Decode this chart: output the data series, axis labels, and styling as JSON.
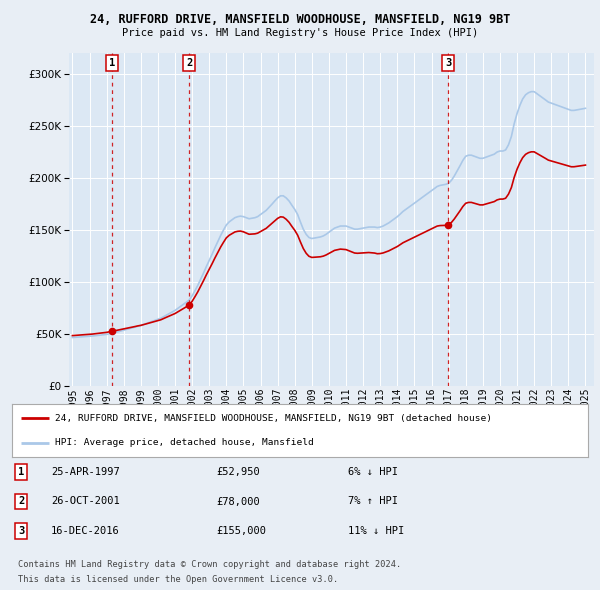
{
  "title": "24, RUFFORD DRIVE, MANSFIELD WOODHOUSE, MANSFIELD, NG19 9BT",
  "subtitle": "Price paid vs. HM Land Registry's House Price Index (HPI)",
  "xlim_start": 1994.8,
  "xlim_end": 2025.5,
  "ylim": [
    0,
    320000
  ],
  "yticks": [
    0,
    50000,
    100000,
    150000,
    200000,
    250000,
    300000
  ],
  "ytick_labels": [
    "£0",
    "£50K",
    "£100K",
    "£150K",
    "£200K",
    "£250K",
    "£300K"
  ],
  "xticks": [
    1995,
    1996,
    1997,
    1998,
    1999,
    2000,
    2001,
    2002,
    2003,
    2004,
    2005,
    2006,
    2007,
    2008,
    2009,
    2010,
    2011,
    2012,
    2013,
    2014,
    2015,
    2016,
    2017,
    2018,
    2019,
    2020,
    2021,
    2022,
    2023,
    2024,
    2025
  ],
  "transaction_dates": [
    1997.32,
    2001.82,
    2016.96
  ],
  "transaction_prices": [
    52950,
    78000,
    155000
  ],
  "transaction_labels": [
    "1",
    "2",
    "3"
  ],
  "legend_line1": "24, RUFFORD DRIVE, MANSFIELD WOODHOUSE, MANSFIELD, NG19 9BT (detached house)",
  "legend_line2": "HPI: Average price, detached house, Mansfield",
  "table_rows": [
    [
      "1",
      "25-APR-1997",
      "£52,950",
      "6% ↓ HPI"
    ],
    [
      "2",
      "26-OCT-2001",
      "£78,000",
      "7% ↑ HPI"
    ],
    [
      "3",
      "16-DEC-2016",
      "£155,000",
      "11% ↓ HPI"
    ]
  ],
  "footnote1": "Contains HM Land Registry data © Crown copyright and database right 2024.",
  "footnote2": "This data is licensed under the Open Government Licence v3.0.",
  "hpi_color": "#aac8e8",
  "price_color": "#cc0000",
  "background_color": "#e8eef5",
  "plot_bg_color": "#dce8f4",
  "grid_color": "#ffffff",
  "transaction_box_color": "#cc0000",
  "hpi_years": [
    1995.0,
    1995.17,
    1995.33,
    1995.5,
    1995.67,
    1995.83,
    1996.0,
    1996.17,
    1996.33,
    1996.5,
    1996.67,
    1996.83,
    1997.0,
    1997.17,
    1997.33,
    1997.5,
    1997.67,
    1997.83,
    1998.0,
    1998.17,
    1998.33,
    1998.5,
    1998.67,
    1998.83,
    1999.0,
    1999.17,
    1999.33,
    1999.5,
    1999.67,
    1999.83,
    2000.0,
    2000.17,
    2000.33,
    2000.5,
    2000.67,
    2000.83,
    2001.0,
    2001.17,
    2001.33,
    2001.5,
    2001.67,
    2001.83,
    2002.0,
    2002.17,
    2002.33,
    2002.5,
    2002.67,
    2002.83,
    2003.0,
    2003.17,
    2003.33,
    2003.5,
    2003.67,
    2003.83,
    2004.0,
    2004.17,
    2004.33,
    2004.5,
    2004.67,
    2004.83,
    2005.0,
    2005.17,
    2005.33,
    2005.5,
    2005.67,
    2005.83,
    2006.0,
    2006.17,
    2006.33,
    2006.5,
    2006.67,
    2006.83,
    2007.0,
    2007.17,
    2007.33,
    2007.5,
    2007.67,
    2007.83,
    2008.0,
    2008.17,
    2008.33,
    2008.5,
    2008.67,
    2008.83,
    2009.0,
    2009.17,
    2009.33,
    2009.5,
    2009.67,
    2009.83,
    2010.0,
    2010.17,
    2010.33,
    2010.5,
    2010.67,
    2010.83,
    2011.0,
    2011.17,
    2011.33,
    2011.5,
    2011.67,
    2011.83,
    2012.0,
    2012.17,
    2012.33,
    2012.5,
    2012.67,
    2012.83,
    2013.0,
    2013.17,
    2013.33,
    2013.5,
    2013.67,
    2013.83,
    2014.0,
    2014.17,
    2014.33,
    2014.5,
    2014.67,
    2014.83,
    2015.0,
    2015.17,
    2015.33,
    2015.5,
    2015.67,
    2015.83,
    2016.0,
    2016.17,
    2016.33,
    2016.5,
    2016.67,
    2016.83,
    2017.0,
    2017.17,
    2017.33,
    2017.5,
    2017.67,
    2017.83,
    2018.0,
    2018.17,
    2018.33,
    2018.5,
    2018.67,
    2018.83,
    2019.0,
    2019.17,
    2019.33,
    2019.5,
    2019.67,
    2019.83,
    2020.0,
    2020.17,
    2020.33,
    2020.5,
    2020.67,
    2020.83,
    2021.0,
    2021.17,
    2021.33,
    2021.5,
    2021.67,
    2021.83,
    2022.0,
    2022.17,
    2022.33,
    2022.5,
    2022.67,
    2022.83,
    2023.0,
    2023.17,
    2023.33,
    2023.5,
    2023.67,
    2023.83,
    2024.0,
    2024.17,
    2024.33,
    2024.5,
    2024.67,
    2024.83,
    2025.0
  ],
  "hpi_values": [
    47000,
    47200,
    47400,
    47600,
    47800,
    48000,
    48200,
    48400,
    48700,
    49000,
    49300,
    49600,
    50000,
    50500,
    51000,
    51800,
    52500,
    53200,
    54000,
    54800,
    55500,
    56200,
    57000,
    57800,
    58500,
    59500,
    60500,
    61500,
    62500,
    63500,
    64500,
    65500,
    67000,
    68500,
    70000,
    71500,
    73000,
    75000,
    77000,
    79000,
    81000,
    83000,
    87000,
    92000,
    97000,
    103000,
    109000,
    115000,
    121000,
    127000,
    133000,
    139000,
    145000,
    150000,
    155000,
    158000,
    160000,
    162000,
    163000,
    163500,
    163000,
    162000,
    161000,
    161500,
    162000,
    163000,
    165000,
    167000,
    169000,
    172000,
    175000,
    178000,
    181000,
    183000,
    183000,
    181000,
    178000,
    174000,
    170000,
    165000,
    158000,
    151000,
    146000,
    143000,
    142000,
    142500,
    143000,
    143500,
    144500,
    146000,
    148000,
    150000,
    152000,
    153000,
    154000,
    154000,
    154000,
    153000,
    152000,
    151000,
    151000,
    151500,
    152000,
    152500,
    153000,
    153000,
    153000,
    152500,
    153000,
    154000,
    155500,
    157000,
    159000,
    161000,
    163000,
    165500,
    168000,
    170000,
    172000,
    174000,
    176000,
    178000,
    180000,
    182000,
    184000,
    186000,
    188000,
    190000,
    192000,
    193000,
    193500,
    194000,
    195000,
    198000,
    202000,
    207000,
    212000,
    217000,
    221000,
    222000,
    222000,
    221000,
    220000,
    219000,
    219000,
    220000,
    221000,
    222000,
    223000,
    225000,
    226000,
    226000,
    227000,
    232000,
    240000,
    252000,
    262000,
    270000,
    276000,
    280000,
    282000,
    283000,
    283000,
    281000,
    279000,
    277000,
    275000,
    273000,
    272000,
    271000,
    270000,
    269000,
    268000,
    267000,
    266000,
    265000,
    265000,
    265500,
    266000,
    266500,
    267000
  ]
}
